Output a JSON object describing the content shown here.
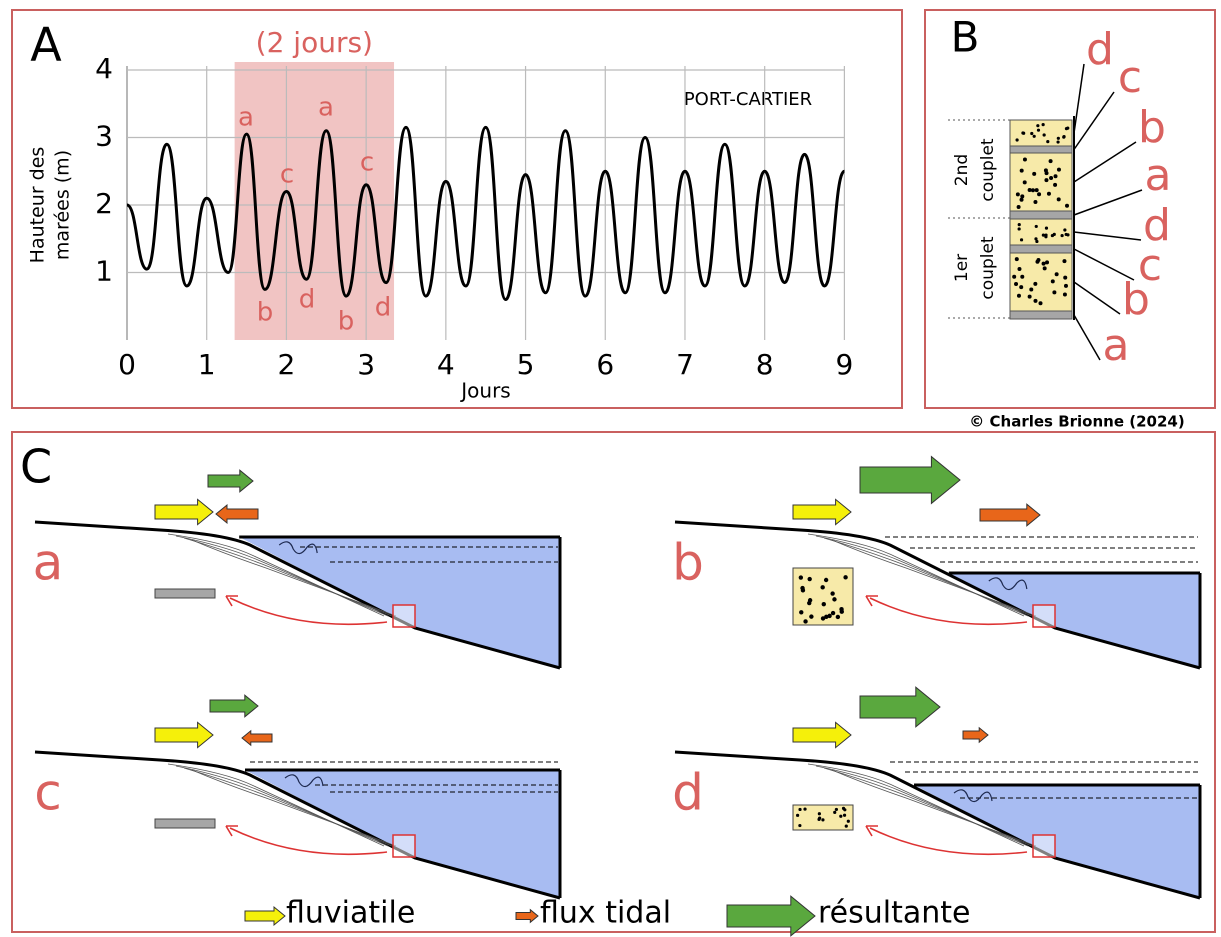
{
  "chart_data": {
    "type": "line",
    "panel_label": "A",
    "title": "PORT-CARTIER",
    "xlabel": "Jours",
    "ylabel": [
      "Hauteur des",
      "marées (m)"
    ],
    "x": [
      0,
      0.25,
      0.5,
      0.75,
      1,
      1.27,
      1.5,
      1.73,
      2,
      2.25,
      2.5,
      2.75,
      3,
      3.25,
      3.5,
      3.75,
      4,
      4.25,
      4.5,
      4.75,
      5,
      5.25,
      5.5,
      5.75,
      6,
      6.25,
      6.5,
      6.75,
      7,
      7.25,
      7.5,
      7.75,
      8,
      8.25,
      8.5,
      8.75,
      9
    ],
    "values": [
      2.0,
      1.05,
      2.9,
      0.8,
      2.1,
      1.0,
      3.05,
      0.75,
      2.2,
      0.9,
      3.1,
      0.65,
      2.3,
      0.85,
      3.15,
      0.65,
      2.35,
      0.8,
      3.15,
      0.6,
      2.45,
      0.7,
      3.1,
      0.65,
      2.5,
      0.7,
      3.0,
      0.7,
      2.5,
      0.8,
      2.9,
      0.8,
      2.5,
      0.85,
      2.75,
      0.8,
      2.5
    ],
    "color": "#000000",
    "xlim": [
      0,
      9
    ],
    "ylim": [
      0,
      4
    ],
    "xticks": [
      0,
      1,
      2,
      3,
      4,
      5,
      6,
      7,
      8,
      9
    ],
    "yticks": [
      1,
      2,
      3,
      4
    ],
    "grid": true,
    "highlight": {
      "label": "(2 jours)",
      "x": [
        1.35,
        3.35
      ],
      "color": "#f1c4c3"
    },
    "annotations": [
      "a",
      "a",
      "c",
      "c",
      "b",
      "d",
      "b",
      "d"
    ]
  },
  "panel_b": {
    "label": "B",
    "layers": [
      "d",
      "c",
      "b",
      "a",
      "d",
      "c",
      "b",
      "a"
    ],
    "couplets": [
      [
        "2nd",
        "couplet"
      ],
      [
        "1er",
        "couplet"
      ]
    ]
  },
  "credit": "© Charles Brionne (2024)",
  "panel_c": {
    "label": "C",
    "scenarios": [
      "a",
      "b",
      "c",
      "d"
    ],
    "legend": [
      "fluviatile",
      "flux tidal",
      "résultante"
    ]
  }
}
